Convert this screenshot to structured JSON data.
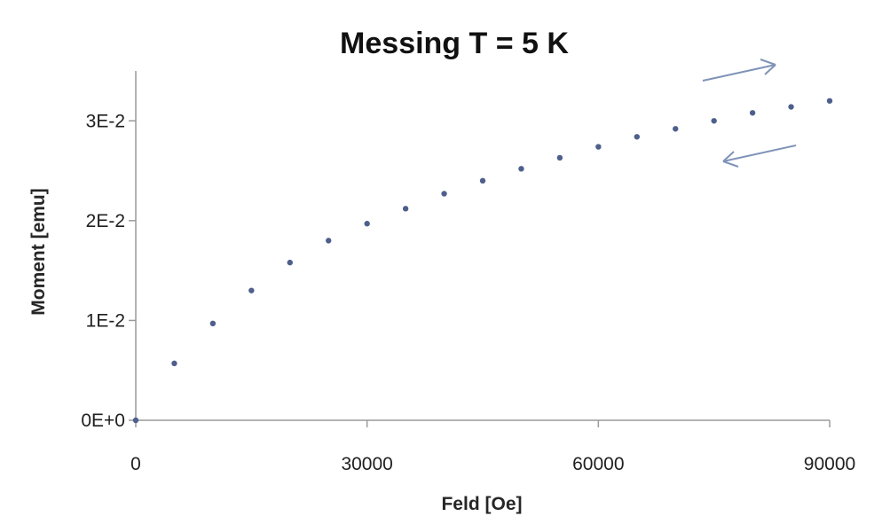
{
  "chart_data": {
    "type": "scatter",
    "title": "Messing T = 5 K",
    "xlabel": "Feld [Oe]",
    "ylabel": "Moment [emu]",
    "xlim": [
      0,
      90000
    ],
    "ylim": [
      0,
      0.035
    ],
    "x_ticks": [
      0,
      30000,
      60000,
      90000
    ],
    "x_tick_labels": [
      "0",
      "30000",
      "60000",
      "90000"
    ],
    "y_ticks": [
      0,
      0.01,
      0.02,
      0.03
    ],
    "y_tick_labels": [
      "0E+0",
      "1E-2",
      "2E-2",
      "3E-2"
    ],
    "grid": false,
    "legend": "none",
    "marker_color": "#4e5f8c",
    "series": [
      {
        "x": [
          0,
          5000,
          10000,
          15000,
          20000,
          25000,
          30000,
          35000,
          40000,
          45000,
          50000,
          55000,
          60000,
          65000,
          70000,
          75000,
          80000,
          85000,
          90000
        ],
        "y": [
          0,
          0.0057,
          0.0097,
          0.013,
          0.0158,
          0.018,
          0.0197,
          0.0212,
          0.0227,
          0.024,
          0.0252,
          0.0263,
          0.0274,
          0.0284,
          0.0292,
          0.03,
          0.0308,
          0.0314,
          0.032
        ]
      }
    ],
    "annotations": [
      {
        "type": "arrow",
        "direction": "right",
        "color": "#7f93b8"
      },
      {
        "type": "arrow",
        "direction": "left",
        "color": "#7f93b8"
      }
    ]
  }
}
